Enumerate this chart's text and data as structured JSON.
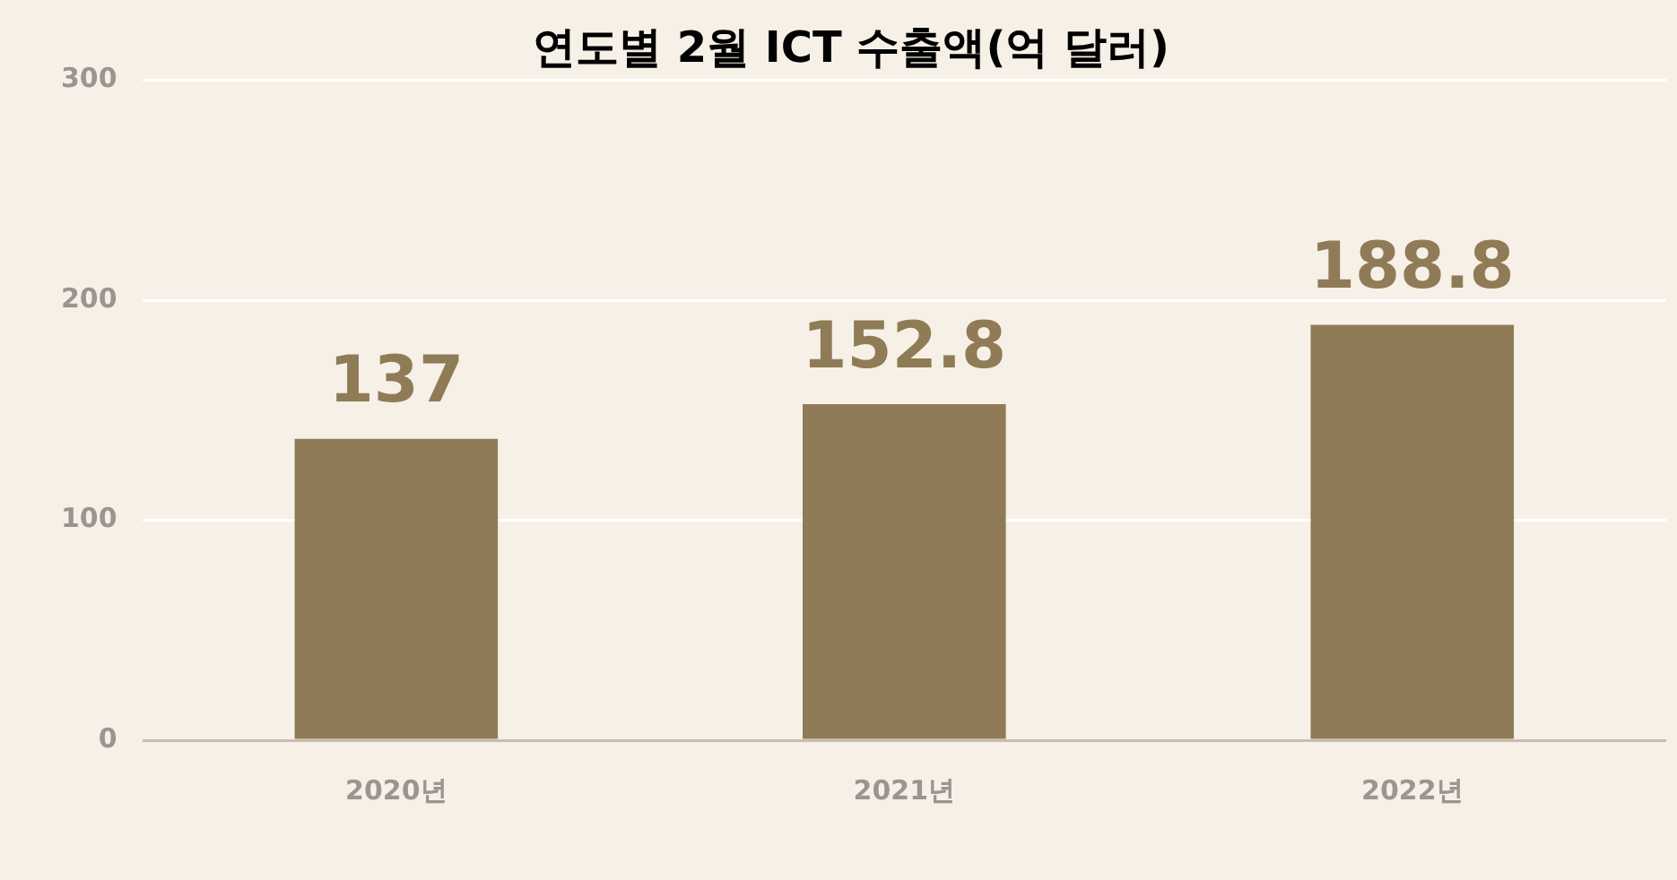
{
  "chart_data": {
    "type": "bar",
    "title": "연도별 2월 ICT 수출액(억 달러)",
    "categories": [
      "2020년",
      "2021년",
      "2022년"
    ],
    "values": [
      137,
      152.8,
      188.8
    ],
    "color": "#8f7b56",
    "ylim": [
      0,
      300
    ],
    "yticks": [
      0,
      100,
      200,
      300
    ],
    "grid": "y",
    "legend": false,
    "data_labels": true
  }
}
